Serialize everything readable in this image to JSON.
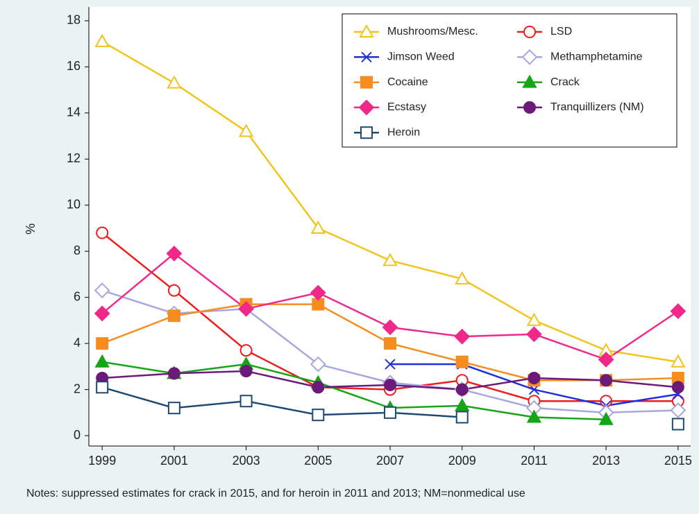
{
  "chart_data": {
    "type": "line",
    "y_label": "%",
    "note": "Notes: suppressed estimates for crack in 2015, and for heroin in 2011 and 2013; NM=nonmedical use",
    "x": [
      1999,
      2001,
      2003,
      2005,
      2007,
      2009,
      2011,
      2013,
      2015
    ],
    "xlim": [
      1998.63,
      2015.35
    ],
    "xticks": [
      1999,
      2001,
      2003,
      2005,
      2007,
      2009,
      2011,
      2013,
      2015
    ],
    "ylim": [
      -0.45,
      18.6
    ],
    "yticks": [
      0,
      2,
      4,
      6,
      8,
      10,
      12,
      14,
      16,
      18
    ],
    "grid": false,
    "legend": "top-right",
    "series": [
      {
        "name": "Mushrooms/Mesc.",
        "color": "#f2c31a",
        "marker": "triangle-open",
        "values": [
          17.1,
          15.3,
          13.2,
          9.0,
          7.6,
          6.8,
          5.0,
          3.7,
          3.2
        ]
      },
      {
        "name": "LSD",
        "color": "#ee1c1c",
        "marker": "circle-open",
        "values": [
          8.8,
          6.3,
          3.7,
          2.1,
          2.0,
          2.4,
          1.5,
          1.5,
          1.5
        ]
      },
      {
        "name": "Jimson Weed",
        "color": "#1f2fe0",
        "marker": "x",
        "values": [
          null,
          null,
          null,
          null,
          3.1,
          3.1,
          2.0,
          1.3,
          1.8
        ]
      },
      {
        "name": "Methamphetamine",
        "color": "#a6a6e0",
        "marker": "diamond-open",
        "values": [
          6.3,
          5.3,
          5.5,
          3.1,
          2.3,
          2.0,
          1.2,
          1.0,
          1.1
        ]
      },
      {
        "name": "Cocaine",
        "color": "#f78c1e",
        "marker": "square",
        "values": [
          4.0,
          5.2,
          5.7,
          5.7,
          4.0,
          3.2,
          2.4,
          2.4,
          2.5
        ]
      },
      {
        "name": "Crack",
        "color": "#16a516",
        "marker": "triangle",
        "values": [
          3.2,
          2.7,
          3.1,
          2.3,
          1.2,
          1.3,
          0.8,
          0.7,
          null
        ]
      },
      {
        "name": "Ecstasy",
        "color": "#f0288a",
        "marker": "diamond",
        "values": [
          5.3,
          7.9,
          5.5,
          6.2,
          4.7,
          4.3,
          4.4,
          3.3,
          5.4
        ]
      },
      {
        "name": "Tranquillizers (NM)",
        "color": "#6c1a7a",
        "marker": "circle",
        "values": [
          2.5,
          2.7,
          2.8,
          2.1,
          2.2,
          2.0,
          2.5,
          2.4,
          2.1
        ]
      },
      {
        "name": "Heroin",
        "color": "#1c4a73",
        "marker": "square-open",
        "values": [
          2.1,
          1.2,
          1.5,
          0.9,
          1.0,
          0.8,
          null,
          null,
          0.5
        ]
      }
    ]
  }
}
